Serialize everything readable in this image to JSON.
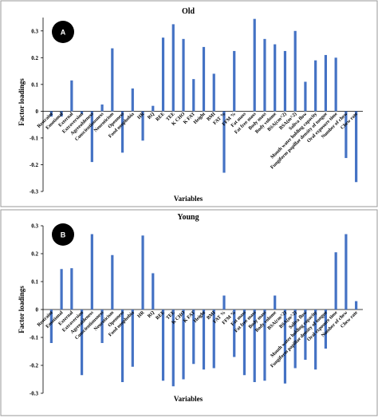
{
  "chart_data": [
    {
      "type": "bar",
      "badge": "A",
      "title": "Old",
      "xlabel": "Variables",
      "ylabel": "Factor loadings",
      "ylim": [
        -0.3,
        0.35
      ],
      "yticks": [
        0.3,
        0.2,
        0.1,
        0,
        -0.1,
        -0.2,
        -0.3
      ],
      "ytick_labels": [
        "0.3",
        "0.2",
        "0.1",
        "0",
        "-0.1",
        "-0.2",
        "-0.3"
      ],
      "color": "#4472c4",
      "categories": [
        "Restraint",
        "Emotional",
        "External",
        "Extraversion",
        "Agreeableness",
        "Conscientiousness",
        "Neuroticism",
        "Openness",
        "Food neophobia",
        "HR",
        "RQ",
        "REE",
        "TEE",
        "K CHO",
        "K FAT",
        "Height",
        "BMI",
        "FAT %",
        "FFM %",
        "Fat mass",
        "Fat free mass",
        "Body mass",
        "Body volume",
        "BSA(cm^2)",
        "BSA(m^2)",
        "Saliva flow",
        "Mouth water holding capacity",
        "Fungiform papillae density of tongue",
        "Oral exposure time",
        "Number of chew",
        "Chew rate"
      ],
      "values": [
        -0.02,
        -0.02,
        0.115,
        -0.01,
        -0.19,
        0.025,
        0.235,
        -0.155,
        0.085,
        -0.11,
        0.02,
        0.275,
        0.325,
        0.27,
        0.12,
        0.24,
        0.14,
        -0.23,
        0.225,
        0.0,
        0.345,
        0.27,
        0.25,
        0.225,
        0.3,
        0.11,
        0.19,
        0.21,
        0.2,
        -0.175,
        -0.265
      ]
    },
    {
      "type": "bar",
      "badge": "B",
      "title": "Young",
      "xlabel": "Variables",
      "ylabel": "Factor loadings",
      "ylim": [
        -0.3,
        0.3
      ],
      "yticks": [
        0.3,
        0.2,
        0.1,
        0,
        -0.1,
        -0.2,
        -0.3
      ],
      "ytick_labels": [
        "0.3",
        "0.2",
        "0.1",
        "0",
        "-0.1",
        "-0.2",
        "-0.3"
      ],
      "color": "#4472c4",
      "categories": [
        "Restraint",
        "Emotional",
        "External",
        "Extraversion",
        "Agreeableness",
        "Conscientiousness",
        "Neuroticism",
        "Openness",
        "Food neophobia",
        "HR",
        "RQ",
        "REE",
        "TEE",
        "K CHO",
        "K FAT",
        "Height",
        "BMI",
        "FAT %",
        "FFM %",
        "Fat mass",
        "Fat free mass",
        "Body mass",
        "Body volume",
        "BSA(cm^2)",
        "BSA(m^2)",
        "Saliva flow",
        "Mouth water holding capacity",
        "Fungiform papillae density of tongue",
        "Oral exposure time",
        "Number of chew",
        "Chew rate"
      ],
      "values": [
        -0.12,
        0.145,
        0.148,
        -0.235,
        0.27,
        -0.12,
        0.195,
        -0.26,
        -0.205,
        0.265,
        0.13,
        -0.255,
        -0.275,
        -0.25,
        -0.195,
        -0.215,
        -0.21,
        0.05,
        -0.17,
        -0.235,
        -0.26,
        -0.255,
        0.05,
        -0.265,
        -0.21,
        -0.18,
        -0.215,
        -0.14,
        0.205,
        0.27,
        0.03
      ]
    }
  ]
}
